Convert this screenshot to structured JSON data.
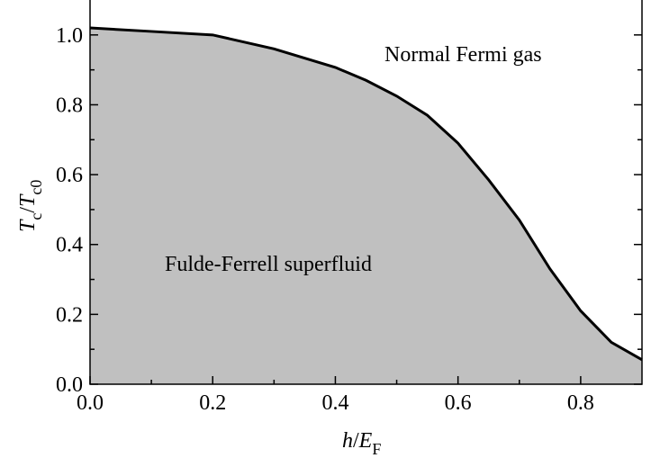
{
  "chart_data": {
    "type": "area",
    "x": [
      0,
      0.1,
      0.2,
      0.3,
      0.4,
      0.45,
      0.5,
      0.55,
      0.6,
      0.65,
      0.7,
      0.75,
      0.8,
      0.85,
      0.9
    ],
    "series": [
      {
        "color": "#000000",
        "fill": "#c0c0c0",
        "values": [
          1.02,
          1.01,
          1.0,
          0.96,
          0.907,
          0.87,
          0.825,
          0.77,
          0.69,
          0.585,
          0.47,
          0.33,
          0.21,
          0.12,
          0.07
        ]
      }
    ],
    "xlim": [
      0,
      0.9
    ],
    "ylim": [
      0,
      1.1
    ],
    "xticks": [
      {
        "value": 0,
        "label": "0.0"
      },
      0.2,
      0.4,
      0.6,
      0.8
    ],
    "yticks": [
      {
        "value": 0,
        "label": "0.0"
      },
      0.2,
      0.4,
      0.6,
      0.8,
      {
        "value": 1,
        "label": "1.0"
      }
    ],
    "x_label": [
      "h",
      "/",
      "E",
      "F"
    ],
    "y_label": [
      "T",
      "c",
      "/",
      "T",
      "c0"
    ],
    "annotations": [
      "Normal Fermi gas",
      "Fulde-Ferrell superfluid"
    ]
  }
}
